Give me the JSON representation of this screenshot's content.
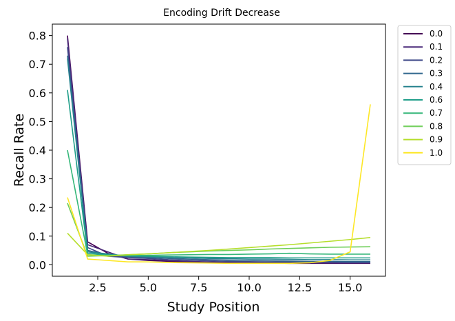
{
  "chart_data": {
    "type": "line",
    "title": "Encoding Drift Decrease",
    "xlabel": "Study Position",
    "ylabel": "Recall Rate",
    "xlim": [
      0.25,
      16.75
    ],
    "ylim": [
      -0.04,
      0.84
    ],
    "xticks": [
      2.5,
      5.0,
      7.5,
      10.0,
      12.5,
      15.0
    ],
    "xtick_labels": [
      "2.5",
      "5.0",
      "7.5",
      "10.0",
      "12.5",
      "15.0"
    ],
    "yticks": [
      0.0,
      0.1,
      0.2,
      0.3,
      0.4,
      0.5,
      0.6,
      0.7,
      0.8
    ],
    "ytick_labels": [
      "0.0",
      "0.1",
      "0.2",
      "0.3",
      "0.4",
      "0.5",
      "0.6",
      "0.7",
      "0.8"
    ],
    "grid": false,
    "legend": "outside-right",
    "x": [
      1,
      2,
      3,
      4,
      5,
      6,
      7,
      8,
      9,
      10,
      11,
      12,
      13,
      14,
      15,
      16
    ],
    "series": [
      {
        "name": "0.0",
        "color": "#440154",
        "values": [
          0.8,
          0.08,
          0.04,
          0.02,
          0.015,
          0.012,
          0.01,
          0.008,
          0.007,
          0.006,
          0.006,
          0.005,
          0.005,
          0.005,
          0.005,
          0.005
        ]
      },
      {
        "name": "0.1",
        "color": "#482878",
        "values": [
          0.79,
          0.07,
          0.045,
          0.02,
          0.018,
          0.015,
          0.012,
          0.01,
          0.009,
          0.008,
          0.007,
          0.007,
          0.006,
          0.006,
          0.006,
          0.006
        ]
      },
      {
        "name": "0.2",
        "color": "#3e4989",
        "values": [
          0.76,
          0.06,
          0.03,
          0.025,
          0.022,
          0.018,
          0.016,
          0.014,
          0.012,
          0.011,
          0.01,
          0.01,
          0.009,
          0.009,
          0.008,
          0.008
        ]
      },
      {
        "name": "0.3",
        "color": "#31688e",
        "values": [
          0.73,
          0.05,
          0.035,
          0.028,
          0.025,
          0.022,
          0.02,
          0.018,
          0.016,
          0.015,
          0.014,
          0.013,
          0.012,
          0.012,
          0.011,
          0.011
        ]
      },
      {
        "name": "0.4",
        "color": "#26828e",
        "values": [
          0.72,
          0.045,
          0.038,
          0.03,
          0.028,
          0.026,
          0.024,
          0.022,
          0.021,
          0.02,
          0.02,
          0.019,
          0.018,
          0.018,
          0.017,
          0.017
        ]
      },
      {
        "name": "0.6",
        "color": "#1f9e89",
        "values": [
          0.61,
          0.04,
          0.035,
          0.032,
          0.03,
          0.028,
          0.027,
          0.026,
          0.025,
          0.025,
          0.025,
          0.024,
          0.024,
          0.024,
          0.024,
          0.024
        ]
      },
      {
        "name": "0.7",
        "color": "#35b779",
        "values": [
          0.4,
          0.035,
          0.033,
          0.032,
          0.033,
          0.034,
          0.035,
          0.036,
          0.036,
          0.037,
          0.038,
          0.04,
          0.038,
          0.037,
          0.037,
          0.037
        ]
      },
      {
        "name": "0.8",
        "color": "#6ece58",
        "values": [
          0.215,
          0.03,
          0.032,
          0.035,
          0.038,
          0.042,
          0.045,
          0.048,
          0.05,
          0.052,
          0.055,
          0.057,
          0.059,
          0.061,
          0.062,
          0.063
        ]
      },
      {
        "name": "0.9",
        "color": "#b5de2b",
        "values": [
          0.11,
          0.035,
          0.03,
          0.035,
          0.038,
          0.042,
          0.046,
          0.05,
          0.055,
          0.06,
          0.065,
          0.07,
          0.076,
          0.082,
          0.088,
          0.095
        ]
      },
      {
        "name": "1.0",
        "color": "#fde725",
        "values": [
          0.235,
          0.02,
          0.015,
          0.01,
          0.01,
          0.008,
          0.007,
          0.006,
          0.005,
          0.005,
          0.005,
          0.005,
          0.007,
          0.015,
          0.045,
          0.56
        ]
      }
    ]
  }
}
